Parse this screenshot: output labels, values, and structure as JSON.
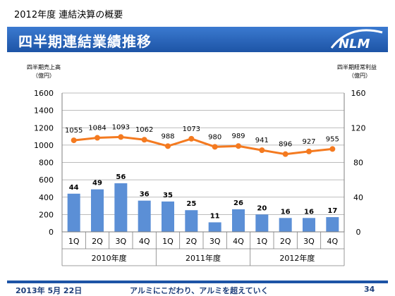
{
  "header": {
    "subtitle": "2012年度  連結決算の概要",
    "title": "四半期連結業績推移",
    "logo_text": "NLM"
  },
  "footer": {
    "date": "2013年 5月 22日",
    "slogan": "アルミにこだわり、アルミを超えていく",
    "page": "34"
  },
  "colors": {
    "bar": "#5b8fd6",
    "line": "#f47a20",
    "title_bg": "#1d54a6"
  },
  "chart_data": {
    "type": "bar",
    "left_axis": {
      "label_line1": "四半期売上高",
      "label_line2": "（億円）",
      "ylim": [
        0,
        1600
      ],
      "ticks": [
        0,
        200,
        400,
        600,
        800,
        1000,
        1200,
        1400,
        1600
      ]
    },
    "right_axis": {
      "label_line1": "四半期経常利益",
      "label_line2": "（億円）",
      "ylim": [
        0,
        160
      ],
      "ticks": [
        0,
        40,
        80,
        120,
        160
      ]
    },
    "categories": [
      "1Q",
      "2Q",
      "3Q",
      "4Q",
      "1Q",
      "2Q",
      "3Q",
      "4Q",
      "1Q",
      "2Q",
      "3Q",
      "4Q"
    ],
    "groups": [
      "2010年度",
      "2011年度",
      "2012年度"
    ],
    "series": [
      {
        "kind": "line",
        "axis": "left",
        "values": [
          1055,
          1084,
          1093,
          1062,
          988,
          1073,
          980,
          989,
          941,
          896,
          927,
          955
        ]
      },
      {
        "kind": "bar",
        "axis": "right",
        "values": [
          44,
          49,
          56,
          36,
          35,
          25,
          11,
          26,
          20,
          16,
          16,
          17
        ]
      }
    ],
    "grid": true
  }
}
